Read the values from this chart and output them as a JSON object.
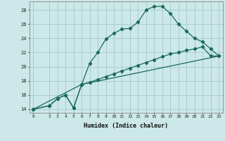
{
  "xlabel": "Humidex (Indice chaleur)",
  "background_color": "#cce8e8",
  "grid_color": "#aacece",
  "line_color": "#1a6b5a",
  "xlim": [
    -0.5,
    23.5
  ],
  "ylim": [
    13.5,
    29.2
  ],
  "xticks": [
    0,
    2,
    3,
    4,
    5,
    6,
    7,
    8,
    9,
    10,
    11,
    12,
    13,
    14,
    15,
    16,
    17,
    18,
    19,
    20,
    21,
    22,
    23
  ],
  "yticks": [
    14,
    16,
    18,
    20,
    22,
    24,
    26,
    28
  ],
  "line1_x": [
    0,
    2,
    3,
    4,
    5,
    6,
    7,
    8,
    9,
    10,
    11,
    12,
    13,
    14,
    15,
    16,
    17,
    18,
    19,
    20,
    21,
    22,
    23
  ],
  "line1_y": [
    14,
    14.5,
    15.5,
    16.0,
    14.2,
    17.5,
    20.5,
    22.0,
    23.9,
    24.7,
    25.3,
    25.4,
    26.3,
    28.0,
    28.5,
    28.5,
    27.5,
    26.0,
    25.0,
    24.0,
    23.5,
    22.5,
    21.5
  ],
  "line2_x": [
    0,
    6,
    7,
    8,
    9,
    10,
    11,
    12,
    13,
    14,
    15,
    16,
    17,
    18,
    19,
    20,
    21,
    22,
    23
  ],
  "line2_y": [
    14,
    17.5,
    17.8,
    18.2,
    18.6,
    19.0,
    19.4,
    19.8,
    20.2,
    20.6,
    21.0,
    21.4,
    21.8,
    22.0,
    22.3,
    22.5,
    22.8,
    21.5,
    21.5
  ],
  "line3_x": [
    0,
    2,
    3,
    4,
    5,
    6,
    23
  ],
  "line3_y": [
    14,
    14.5,
    15.5,
    16.0,
    14.2,
    17.5,
    21.5
  ]
}
